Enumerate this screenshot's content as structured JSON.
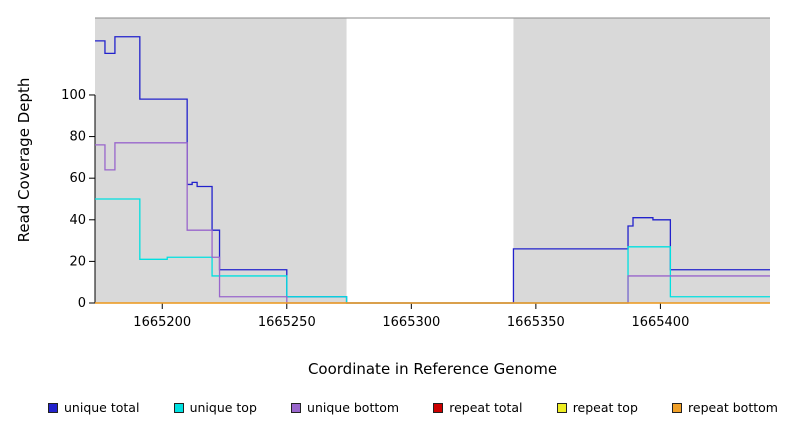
{
  "chart_data": {
    "type": "line",
    "title": "",
    "xlabel": "Coordinate in Reference Genome",
    "ylabel": "Read Coverage Depth",
    "xlim": [
      1665173,
      1665444
    ],
    "ylim": [
      0,
      137
    ],
    "x_ticks": [
      1665200,
      1665250,
      1665300,
      1665350,
      1665400
    ],
    "y_ticks": [
      0,
      20,
      40,
      60,
      80,
      100
    ],
    "grid": false,
    "plot_background": "#ffffff",
    "shaded_band_color": "#d9d9d9",
    "shaded_regions": [
      {
        "x0": 1665173,
        "x1": 1665274
      },
      {
        "x0": 1665341,
        "x1": 1665444
      }
    ],
    "series": [
      {
        "name": "unique total",
        "color": "#2222cc",
        "steps": [
          [
            1665173,
            126
          ],
          [
            1665177,
            120
          ],
          [
            1665181,
            128
          ],
          [
            1665191,
            98
          ],
          [
            1665210,
            57
          ],
          [
            1665212,
            58
          ],
          [
            1665214,
            56
          ],
          [
            1665220,
            35
          ],
          [
            1665223,
            16
          ],
          [
            1665250,
            3
          ],
          [
            1665274,
            0
          ],
          [
            1665341,
            26
          ],
          [
            1665387,
            37
          ],
          [
            1665389,
            41
          ],
          [
            1665397,
            40
          ],
          [
            1665404,
            16
          ]
        ]
      },
      {
        "name": "unique top",
        "color": "#00e0e0",
        "steps": [
          [
            1665173,
            50
          ],
          [
            1665191,
            21
          ],
          [
            1665202,
            22
          ],
          [
            1665220,
            13
          ],
          [
            1665250,
            3
          ],
          [
            1665274,
            0
          ],
          [
            1665387,
            27
          ],
          [
            1665404,
            3
          ]
        ]
      },
      {
        "name": "unique bottom",
        "color": "#9966cc",
        "steps": [
          [
            1665173,
            76
          ],
          [
            1665177,
            64
          ],
          [
            1665181,
            77
          ],
          [
            1665210,
            35
          ],
          [
            1665220,
            22
          ],
          [
            1665223,
            3
          ],
          [
            1665250,
            0
          ],
          [
            1665387,
            13
          ]
        ]
      },
      {
        "name": "repeat total",
        "color": "#cc0000",
        "steps": [
          [
            1665173,
            0
          ]
        ]
      },
      {
        "name": "repeat top",
        "color": "#eded22",
        "steps": [
          [
            1665173,
            0
          ]
        ]
      },
      {
        "name": "repeat bottom",
        "color": "#f0a028",
        "steps": [
          [
            1665173,
            0
          ]
        ]
      }
    ],
    "legend": {
      "position": "bottom",
      "items": [
        {
          "label": "unique total",
          "color": "#2222cc"
        },
        {
          "label": "unique top",
          "color": "#00e0e0"
        },
        {
          "label": "unique bottom",
          "color": "#9966cc"
        },
        {
          "label": "repeat total",
          "color": "#cc0000"
        },
        {
          "label": "repeat top",
          "color": "#eded22"
        },
        {
          "label": "repeat bottom",
          "color": "#f0a028"
        }
      ]
    }
  }
}
